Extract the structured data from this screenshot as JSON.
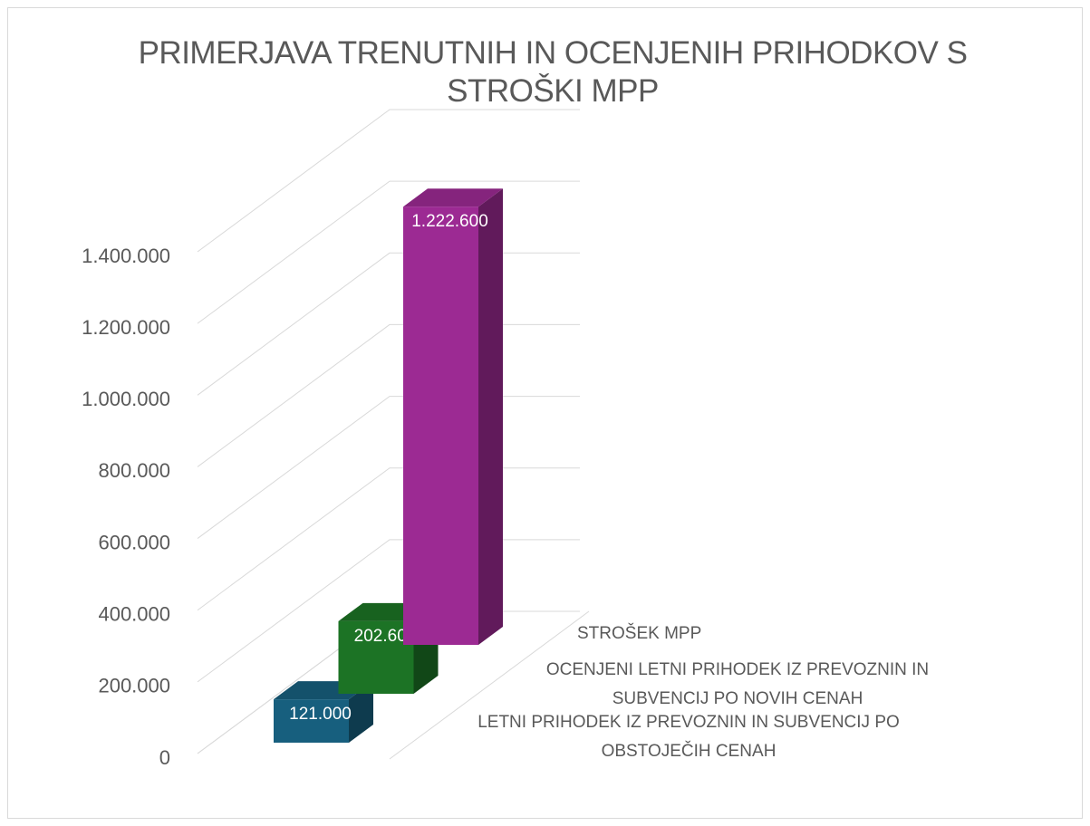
{
  "chart_data": {
    "type": "bar3d",
    "title": "PRIMERJAVA TRENUTNIH IN OCENJENIH PRIHODKOV S STROŠKI MPP",
    "categories": [
      "LETNI PRIHODEK IZ PREVOZNIN IN SUBVENCIJ PO OBSTOJEČIH CENAH",
      "OCENJENI LETNI PRIHODEK IZ PREVOZNIN IN SUBVENCIJ PO NOVIH CENAH",
      "STROŠEK MPP"
    ],
    "values": [
      121000,
      202600,
      1222600
    ],
    "value_labels": [
      "121.000",
      "202.600",
      "1.222.600"
    ],
    "colors": [
      "#175f7e",
      "#1c7325",
      "#9c2a93"
    ],
    "ylim": [
      0,
      1400000
    ],
    "yticks": [
      0,
      {
        "value": 200000,
        "label": "200.000"
      },
      {
        "value": 400000,
        "label": "400.000"
      },
      {
        "value": 600000,
        "label": "600.000"
      },
      {
        "value": 800000,
        "label": "800.000"
      },
      {
        "value": 1000000,
        "label": "1.000.000"
      },
      {
        "value": 1200000,
        "label": "1.200.000"
      },
      {
        "value": 1400000,
        "label": "1.400.000"
      }
    ],
    "grid": true
  }
}
